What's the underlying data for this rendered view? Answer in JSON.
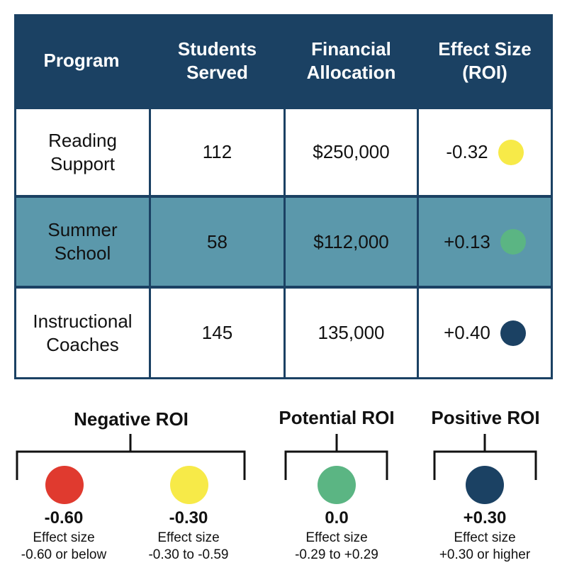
{
  "table": {
    "headers": [
      {
        "line1": "Program",
        "line2": ""
      },
      {
        "line1": "Students",
        "line2": "Served"
      },
      {
        "line1": "Financial",
        "line2": "Allocation"
      },
      {
        "line1": "Effect Size",
        "line2": "(ROI)"
      }
    ],
    "rows": [
      {
        "program_line1": "Reading",
        "program_line2": "Support",
        "students": "112",
        "allocation": "$250,000",
        "effect": "-0.32",
        "dot_color": "#f7ea48",
        "row_bg": "#ffffff"
      },
      {
        "program_line1": "Summer",
        "program_line2": "School",
        "students": "58",
        "allocation": "$112,000",
        "effect": "+0.13",
        "dot_color": "#5bb583",
        "row_bg": "#5b98ab"
      },
      {
        "program_line1": "Instructional",
        "program_line2": "Coaches",
        "students": "145",
        "allocation": "135,000",
        "effect": "+0.40",
        "dot_color": "#1b4163",
        "row_bg": "#ffffff"
      }
    ]
  },
  "legend": {
    "groups": [
      {
        "title": "Negative ROI"
      },
      {
        "title": "Potential ROI"
      },
      {
        "title": "Positive ROI"
      }
    ],
    "items": [
      {
        "value": "-0.60",
        "desc_line1": "Effect size",
        "desc_line2": "-0.60 or below",
        "color": "#e03a2f"
      },
      {
        "value": "-0.30",
        "desc_line1": "Effect size",
        "desc_line2": "-0.30 to -0.59",
        "color": "#f7ea48"
      },
      {
        "value": "0.0",
        "desc_line1": "Effect size",
        "desc_line2": "-0.29 to +0.29",
        "color": "#5bb583"
      },
      {
        "value": "+0.30",
        "desc_line1": "Effect size",
        "desc_line2": "+0.30 or higher",
        "color": "#1b4163"
      }
    ]
  },
  "colors": {
    "header_bg": "#1b4163",
    "grid_lines": "#1b4163",
    "highlight_row": "#5b98ab"
  }
}
